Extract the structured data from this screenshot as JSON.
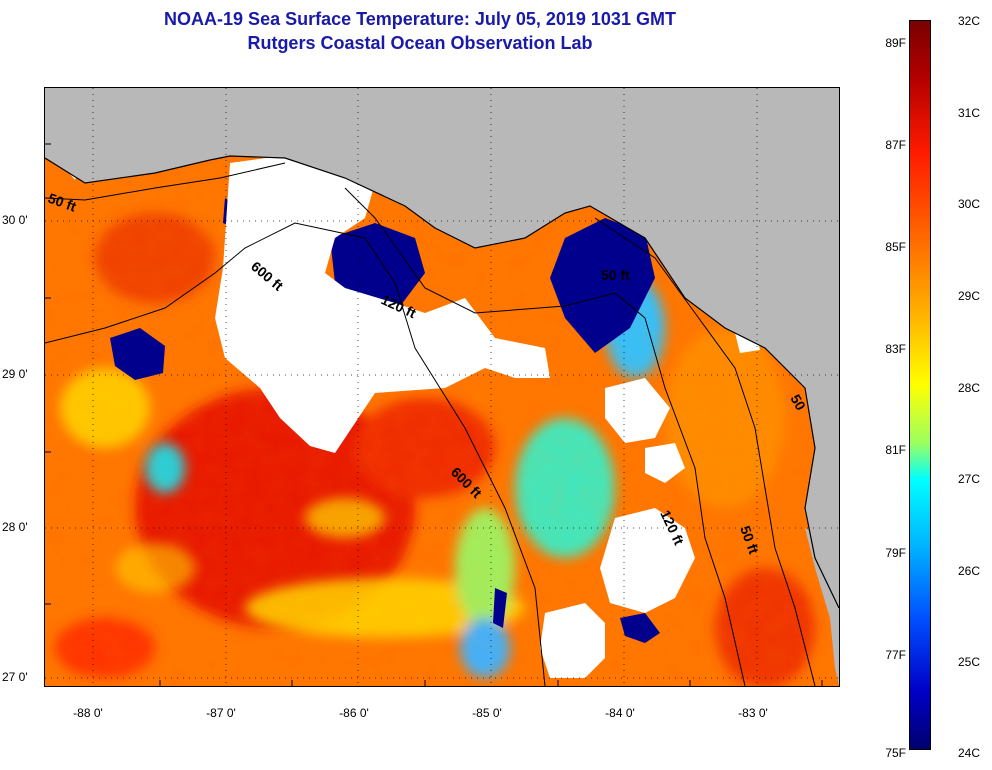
{
  "title": "NOAA-19 Sea Surface Temperature:  July 05, 2019 1031 GMT",
  "subtitle": "Rutgers Coastal Ocean Observation Lab",
  "map": {
    "lat_labels": [
      "30 0'",
      "29 0'",
      "28 0'",
      "27 0'"
    ],
    "lon_labels": [
      "-88 0'",
      "-87 0'",
      "-86 0'",
      "-85 0'",
      "-84 0'",
      "-83 0'"
    ],
    "contour_labels": [
      "50 ft",
      "600 ft",
      "120 ft",
      "600 ft",
      "50 ft",
      "120 ft",
      "50 ft",
      "50"
    ],
    "colors": {
      "land": "#b8b8b8",
      "cloud": "#ffffff",
      "warm": "#ff6a00",
      "hot": "#e01000",
      "cold": "#00008c"
    }
  },
  "colorbar": {
    "fahrenheit": [
      "89F",
      "87F",
      "85F",
      "83F",
      "81F",
      "79F",
      "77F",
      "75F"
    ],
    "celsius": [
      "32C",
      "31C",
      "30C",
      "29C",
      "28C",
      "27C",
      "26C",
      "25C",
      "24C"
    ]
  }
}
